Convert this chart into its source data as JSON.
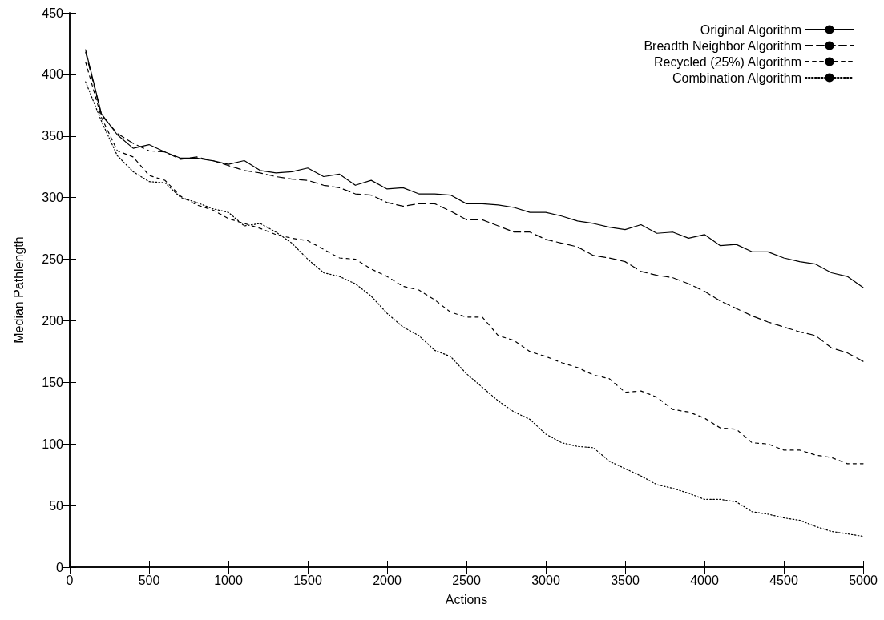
{
  "chart_data": {
    "type": "line",
    "xlabel": "Actions",
    "ylabel": "Median Pathlength",
    "x": [
      100,
      200,
      300,
      400,
      500,
      600,
      700,
      800,
      900,
      1000,
      1100,
      1200,
      1300,
      1400,
      1500,
      1600,
      1700,
      1800,
      1900,
      2000,
      2100,
      2200,
      2300,
      2400,
      2500,
      2600,
      2700,
      2800,
      2900,
      3000,
      3100,
      3200,
      3300,
      3400,
      3500,
      3600,
      3700,
      3800,
      3900,
      4000,
      4100,
      4200,
      4300,
      4400,
      4500,
      4600,
      4700,
      4800,
      4900,
      5000
    ],
    "series": [
      {
        "name": "Original Algorithm",
        "color": "#000000",
        "line_style": "solid",
        "values": [
          420,
          368,
          351,
          340,
          343,
          337,
          332,
          332,
          330,
          327,
          330,
          322,
          320,
          321,
          324,
          317,
          319,
          310,
          314,
          307,
          308,
          303,
          303,
          302,
          295,
          295,
          294,
          292,
          288,
          288,
          285,
          281,
          279,
          276,
          274,
          278,
          271,
          272,
          267,
          270,
          261,
          262,
          256,
          256,
          251,
          248,
          246,
          239,
          236,
          227
        ]
      },
      {
        "name": "Breadth Neighbor Algorithm",
        "color": "#000000",
        "line_style": "dashed",
        "values": [
          418,
          367,
          352,
          344,
          338,
          337,
          331,
          333,
          330,
          326,
          322,
          320,
          317,
          315,
          314,
          310,
          308,
          303,
          302,
          296,
          293,
          295,
          295,
          289,
          282,
          282,
          277,
          272,
          272,
          266,
          263,
          260,
          253,
          251,
          248,
          240,
          237,
          235,
          230,
          224,
          216,
          210,
          204,
          199,
          195,
          191,
          188,
          178,
          174,
          167
        ]
      },
      {
        "name": "Recycled (25%) Algorithm",
        "color": "#000000",
        "line_style": "dashed",
        "values": [
          410,
          365,
          338,
          333,
          318,
          314,
          301,
          294,
          290,
          283,
          279,
          275,
          270,
          267,
          265,
          258,
          251,
          250,
          242,
          236,
          228,
          225,
          217,
          207,
          203,
          203,
          188,
          184,
          175,
          171,
          166,
          162,
          156,
          153,
          142,
          143,
          138,
          128,
          126,
          121,
          113,
          112,
          101,
          100,
          95,
          95,
          91,
          89,
          84,
          84
        ]
      },
      {
        "name": "Combination Algorithm",
        "color": "#000000",
        "line_style": "dotted",
        "values": [
          394,
          362,
          334,
          321,
          313,
          312,
          300,
          296,
          291,
          288,
          277,
          279,
          272,
          263,
          250,
          239,
          236,
          230,
          220,
          206,
          195,
          188,
          176,
          171,
          157,
          146,
          135,
          126,
          120,
          108,
          101,
          98,
          97,
          86,
          80,
          74,
          67,
          64,
          60,
          55,
          55,
          53,
          45,
          43,
          40,
          38,
          33,
          29,
          27,
          25
        ]
      }
    ],
    "xlim": [
      0,
      5000
    ],
    "xticks": [
      0,
      500,
      1000,
      1500,
      2000,
      2500,
      3000,
      3500,
      4000,
      4500,
      5000
    ],
    "ylim": [
      0,
      450
    ],
    "yticks": [
      0,
      50,
      100,
      150,
      200,
      250,
      300,
      350,
      400,
      450
    ],
    "grid": false,
    "legend": "top right",
    "marker": "none"
  }
}
